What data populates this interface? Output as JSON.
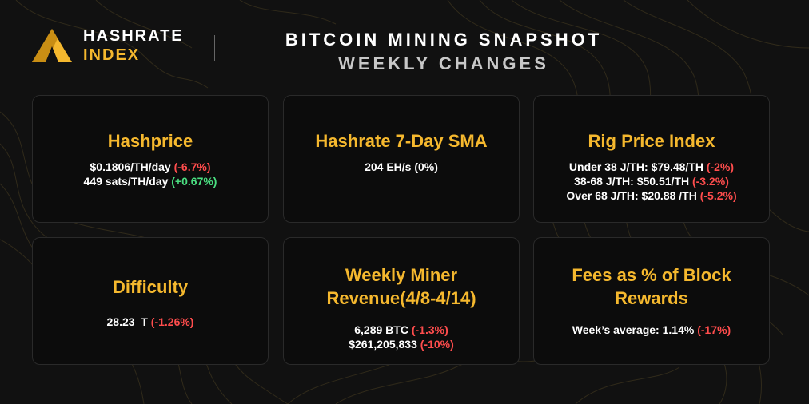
{
  "colors": {
    "accent": "#f5b82e",
    "negative": "#ff4d4d",
    "positive": "#4ade80",
    "background": "#111111"
  },
  "logo": {
    "icon": "hashrate-index-logo-icon",
    "line1": "HASHRATE",
    "line2": "INDEX"
  },
  "title": {
    "line1": "BITCOIN MINING SNAPSHOT",
    "line2": "WEEKLY CHANGES"
  },
  "cards": [
    {
      "title": [
        "Hashprice"
      ],
      "lines": [
        {
          "text": "$0.1806/TH/day ",
          "change": "(-6.7%)",
          "trend": "neg"
        },
        {
          "text": "449 sats/TH/day ",
          "change": "(+0.67%)",
          "trend": "pos"
        }
      ]
    },
    {
      "title": [
        "Hashrate 7-Day SMA"
      ],
      "lines": [
        {
          "text": "204 EH/s (0%)",
          "change": "",
          "trend": "wht"
        }
      ]
    },
    {
      "title": [
        "Rig Price Index"
      ],
      "lines": [
        {
          "text": "Under 38 J/TH: $79.48/TH ",
          "change": "(-2%)",
          "trend": "neg"
        },
        {
          "text": "38-68 J/TH: $50.51/TH ",
          "change": "(-3.2%)",
          "trend": "neg"
        },
        {
          "text": "Over 68 J/TH: $20.88 /TH ",
          "change": "(-5.2%)",
          "trend": "neg"
        }
      ]
    },
    {
      "title": [
        "Difficulty"
      ],
      "lines": [
        {
          "text": "28.23  T ",
          "change": "(-1.26%)",
          "trend": "neg"
        }
      ]
    },
    {
      "title": [
        "Weekly Miner",
        "Revenue(4/8-4/14)"
      ],
      "lines": [
        {
          "text": "6,289 BTC ",
          "change": "(-1.3%)",
          "trend": "neg"
        },
        {
          "text": "$261,205,833 ",
          "change": "(-10%)",
          "trend": "neg"
        }
      ]
    },
    {
      "title": [
        "Fees as % of Block",
        "Rewards"
      ],
      "lines": [
        {
          "text": "Week’s average: 1.14% ",
          "change": "(-17%)",
          "trend": "neg"
        }
      ]
    }
  ]
}
